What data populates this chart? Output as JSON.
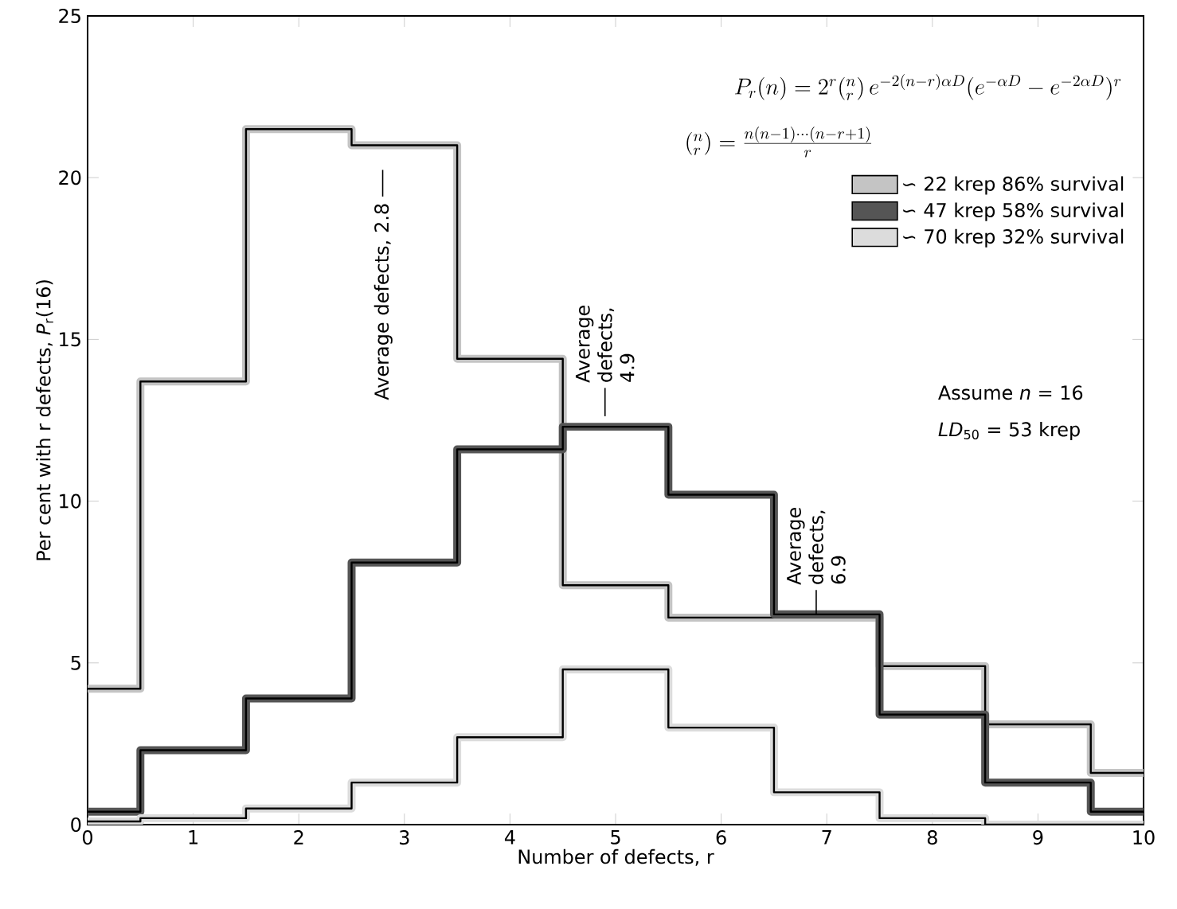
{
  "chart_data": {
    "type": "histogram",
    "xlabel": "Number of defects, r",
    "ylabel": "Per cent with r defects, *P*$_{r}$(16)",
    "bins": [
      0,
      0.5,
      1.5,
      2.5,
      3.5,
      4.5,
      5.5,
      6.5,
      7.5,
      8.5,
      9.5,
      10
    ],
    "series": [
      {
        "name": "∽ 22 krep   86% survival",
        "color": "#c4c4c4",
        "values": [
          4.2,
          13.7,
          21.5,
          21.0,
          14.4,
          7.4,
          6.4,
          6.4,
          4.9,
          3.1,
          1.6
        ]
      },
      {
        "name": "∽ 47 krep   58% survival",
        "color": "#555555",
        "values": [
          0.4,
          2.3,
          3.9,
          8.1,
          11.6,
          12.3,
          10.2,
          6.5,
          3.4,
          1.3,
          0.4
        ]
      },
      {
        "name": "∽ 70 krep   32% survival",
        "color": "#dcdcdc",
        "values": [
          0.1,
          0.2,
          0.5,
          1.3,
          2.7,
          4.8,
          3.0,
          1.0,
          0.2,
          0,
          0
        ]
      }
    ],
    "xlim": [
      0,
      10
    ],
    "ylim": [
      0,
      25
    ],
    "xticks": [
      0,
      1,
      2,
      3,
      4,
      5,
      6,
      7,
      8,
      9,
      10
    ],
    "yticks": [
      0,
      5,
      10,
      15,
      20,
      25
    ],
    "legend": "top right",
    "annotations": [
      "P_r(n) = 2^r ({}^{n}_{r})\\, e^{-2(n-r)\\alpha D}(e^{-\\alpha D} - e^{-2\\alpha D})^r",
      "({}^{n}_{r}) = \\frac{n(n-1)\\cdots(n-r+1)}{r}",
      "Assume *n* = 16",
      "*LD*$_{50}$ = 53 krep",
      "Average defects, 2.8",
      "Average defects, 4.9",
      "Average defects, 6.9"
    ]
  }
}
